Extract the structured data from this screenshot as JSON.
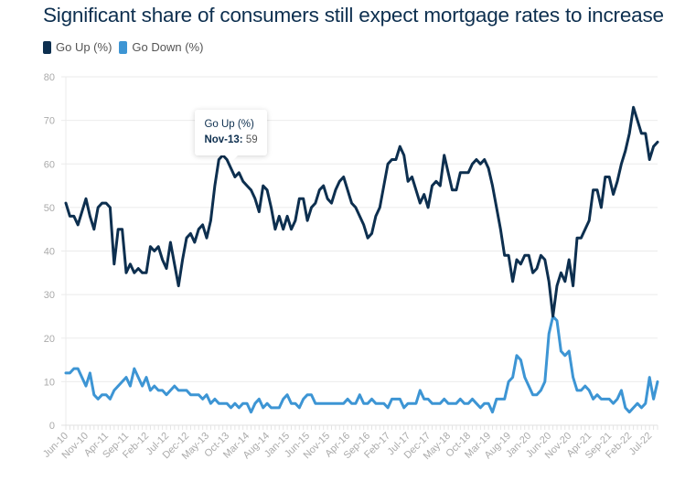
{
  "chart_data": {
    "type": "line",
    "title": "Significant share of consumers still expect mortgage rates to increase",
    "ylim": [
      0,
      80
    ],
    "y_ticks": [
      0,
      10,
      20,
      30,
      40,
      50,
      60,
      70,
      80
    ],
    "grid": "horizontal",
    "legend_position": "top-left",
    "x": [
      "Jun-10",
      "Jul-10",
      "Aug-10",
      "Sep-10",
      "Oct-10",
      "Nov-10",
      "Dec-10",
      "Jan-11",
      "Feb-11",
      "Mar-11",
      "Apr-11",
      "May-11",
      "Jun-11",
      "Jul-11",
      "Aug-11",
      "Sep-11",
      "Oct-11",
      "Nov-11",
      "Dec-11",
      "Jan-12",
      "Feb-12",
      "Mar-12",
      "Apr-12",
      "May-12",
      "Jun-12",
      "Jul-12",
      "Aug-12",
      "Sep-12",
      "Oct-12",
      "Nov-12",
      "Dec-12",
      "Jan-13",
      "Feb-13",
      "Mar-13",
      "Apr-13",
      "May-13",
      "Jun-13",
      "Jul-13",
      "Aug-13",
      "Sep-13",
      "Oct-13",
      "Nov-13",
      "Dec-13",
      "Jan-14",
      "Feb-14",
      "Mar-14",
      "Apr-14",
      "May-14",
      "Jun-14",
      "Jul-14",
      "Aug-14",
      "Sep-14",
      "Oct-14",
      "Nov-14",
      "Dec-14",
      "Jan-15",
      "Feb-15",
      "Mar-15",
      "Apr-15",
      "May-15",
      "Jun-15",
      "Jul-15",
      "Aug-15",
      "Sep-15",
      "Oct-15",
      "Nov-15",
      "Dec-15",
      "Jan-16",
      "Feb-16",
      "Mar-16",
      "Apr-16",
      "May-16",
      "Jun-16",
      "Jul-16",
      "Aug-16",
      "Sep-16",
      "Oct-16",
      "Nov-16",
      "Dec-16",
      "Jan-17",
      "Feb-17",
      "Mar-17",
      "Apr-17",
      "May-17",
      "Jun-17",
      "Jul-17",
      "Aug-17",
      "Sep-17",
      "Oct-17",
      "Nov-17",
      "Dec-17",
      "Jan-18",
      "Feb-18",
      "Mar-18",
      "Apr-18",
      "May-18",
      "Jun-18",
      "Jul-18",
      "Aug-18",
      "Sep-18",
      "Oct-18",
      "Nov-18",
      "Dec-18",
      "Jan-19",
      "Feb-19",
      "Mar-19",
      "Apr-19",
      "May-19",
      "Jun-19",
      "Jul-19",
      "Aug-19",
      "Sep-19",
      "Oct-19",
      "Nov-19",
      "Dec-19",
      "Jan-20",
      "Feb-20",
      "Mar-20",
      "Apr-20",
      "May-20",
      "Jun-20",
      "Jul-20",
      "Aug-20",
      "Sep-20",
      "Oct-20",
      "Nov-20",
      "Dec-20",
      "Jan-21",
      "Feb-21",
      "Mar-21",
      "Apr-21",
      "May-21",
      "Jun-21",
      "Jul-21",
      "Aug-21",
      "Sep-21",
      "Oct-21",
      "Nov-21",
      "Dec-21",
      "Jan-22",
      "Feb-22",
      "Mar-22",
      "Apr-22",
      "May-22",
      "Jun-22",
      "Jul-22",
      "Aug-22",
      "Sep-22"
    ],
    "x_tick_labels": [
      "Jun-10",
      "Nov-10",
      "Apr-11",
      "Sep-11",
      "Feb-12",
      "Jul-12",
      "Dec-12",
      "May-13",
      "Oct-13",
      "Mar-14",
      "Aug-14",
      "Jan-15",
      "Jun-15",
      "Nov-15",
      "Apr-16",
      "Sep-16",
      "Feb-17",
      "Jul-17",
      "Dec-17",
      "May-18",
      "Oct-18",
      "Mar-19",
      "Aug-19",
      "Jan-20",
      "Jun-20",
      "Nov-20",
      "Apr-21",
      "Sep-21",
      "Feb-22",
      "Jul-22"
    ],
    "series": [
      {
        "name": "Go Up (%)",
        "color": "#0d2f4f",
        "values": [
          51,
          48,
          48,
          46,
          49,
          52,
          48,
          45,
          50,
          51,
          51,
          50,
          37,
          45,
          45,
          35,
          37,
          35,
          36,
          35,
          35,
          41,
          40,
          41,
          38,
          36,
          42,
          37,
          32,
          38,
          43,
          44,
          42,
          45,
          46,
          43,
          47,
          55,
          61,
          62,
          61,
          59,
          57,
          58,
          56,
          55,
          54,
          52,
          49,
          55,
          54,
          50,
          45,
          48,
          45,
          48,
          45,
          47,
          52,
          52,
          47,
          50,
          51,
          54,
          55,
          52,
          51,
          54,
          56,
          57,
          54,
          51,
          50,
          48,
          46,
          43,
          44,
          48,
          50,
          55,
          60,
          61,
          61,
          64,
          62,
          56,
          57,
          54,
          51,
          53,
          50,
          55,
          56,
          55,
          62,
          58,
          54,
          54,
          58,
          58,
          58,
          60,
          61,
          60,
          61,
          59,
          55,
          50,
          45,
          39,
          39,
          33,
          38,
          37,
          39,
          39,
          35,
          36,
          39,
          38,
          33,
          25,
          32,
          35,
          33,
          38,
          32,
          43,
          43,
          45,
          47,
          54,
          54,
          50,
          57,
          57,
          53,
          56,
          60,
          63,
          67,
          73,
          70,
          67,
          67,
          61,
          64,
          65
        ]
      },
      {
        "name": "Go Down (%)",
        "color": "#3d95d4",
        "values": [
          12,
          12,
          13,
          13,
          11,
          9,
          12,
          7,
          6,
          7,
          7,
          6,
          8,
          9,
          10,
          11,
          9,
          13,
          11,
          9,
          11,
          8,
          9,
          8,
          8,
          7,
          8,
          9,
          8,
          8,
          8,
          7,
          7,
          7,
          6,
          7,
          5,
          6,
          5,
          5,
          5,
          4,
          5,
          4,
          5,
          5,
          3,
          5,
          6,
          4,
          5,
          4,
          4,
          4,
          6,
          7,
          5,
          5,
          4,
          6,
          7,
          7,
          5,
          5,
          5,
          5,
          5,
          5,
          5,
          5,
          6,
          5,
          5,
          7,
          5,
          5,
          6,
          5,
          5,
          5,
          4,
          6,
          6,
          6,
          4,
          5,
          5,
          5,
          8,
          6,
          6,
          5,
          5,
          5,
          6,
          5,
          5,
          5,
          6,
          5,
          5,
          6,
          5,
          4,
          5,
          5,
          3,
          6,
          6,
          6,
          10,
          11,
          16,
          15,
          11,
          9,
          7,
          7,
          8,
          10,
          21,
          25,
          24,
          17,
          16,
          17,
          11,
          8,
          8,
          9,
          8,
          6,
          7,
          6,
          6,
          6,
          5,
          6,
          8,
          4,
          3,
          4,
          5,
          4,
          5,
          11,
          6,
          10
        ]
      }
    ],
    "tooltip": {
      "series": "Go Up (%)",
      "label": "Nov-13:",
      "value": "59"
    }
  }
}
